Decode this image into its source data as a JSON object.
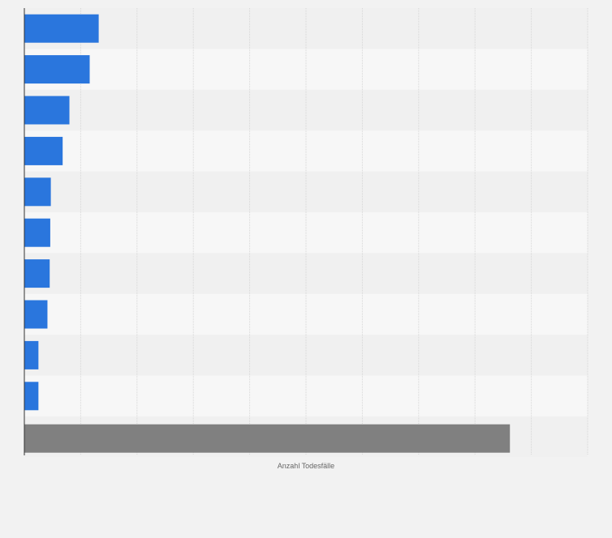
{
  "chart_data": {
    "type": "bar",
    "orientation": "horizontal",
    "xlabel": "Anzahl Todesfälle",
    "xlim": [
      0,
      10
    ],
    "grid": true,
    "categories_count": 11,
    "values": [
      1.32,
      1.16,
      0.8,
      0.68,
      0.47,
      0.46,
      0.45,
      0.41,
      0.25,
      0.25,
      8.62
    ],
    "bar_colors": [
      "#2a76dd",
      "#2a76dd",
      "#2a76dd",
      "#2a76dd",
      "#2a76dd",
      "#2a76dd",
      "#2a76dd",
      "#2a76dd",
      "#2a76dd",
      "#2a76dd",
      "#808080"
    ]
  },
  "colors": {
    "background": "#f2f2f2",
    "band_dark": "#f0f0f0",
    "band_light": "#f7f7f7",
    "grid": "#d6d6d6",
    "axis": "#333333",
    "label": "#666666"
  }
}
